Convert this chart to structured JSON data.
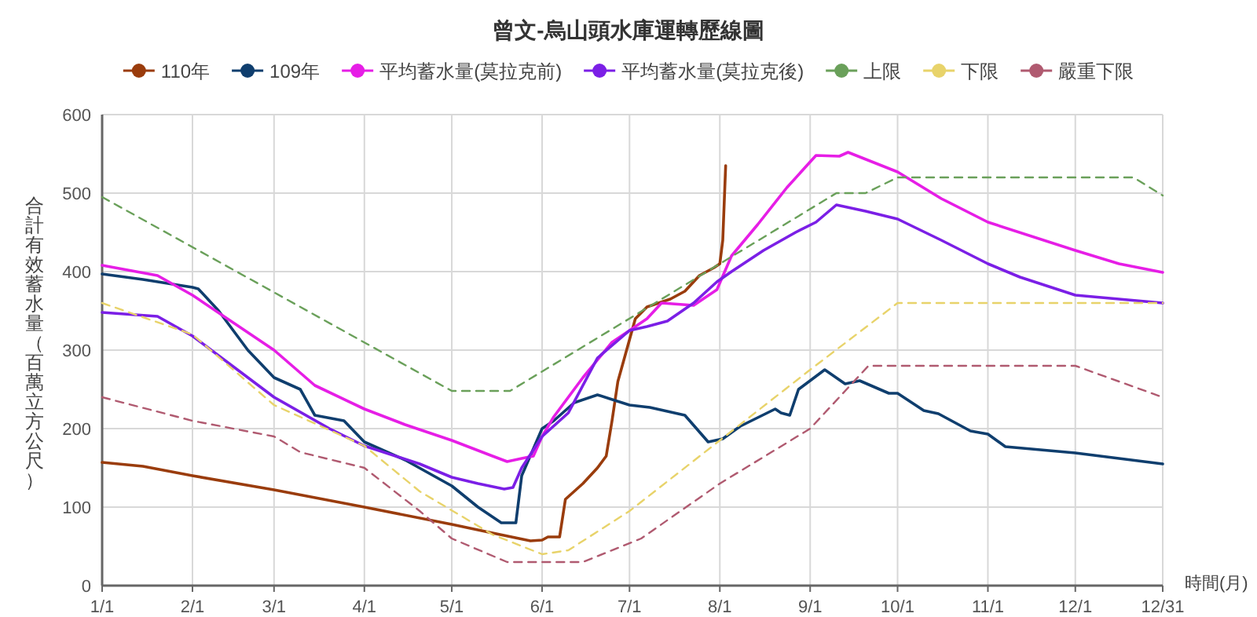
{
  "chart_data": {
    "type": "line",
    "title": "曾文-烏山頭水庫運轉歷線圖",
    "ylabel": "合計有效蓄水量（百萬立方公尺）",
    "xlabel": "時間(月)",
    "legend": "top",
    "grid": true,
    "xlim": [
      "--01-01",
      "--12-31"
    ],
    "xticks": [
      {
        "value": "--01-01",
        "label": "1/1"
      },
      {
        "value": "--02-01",
        "label": "2/1"
      },
      {
        "value": "--03-01",
        "label": "3/1"
      },
      {
        "value": "--04-01",
        "label": "4/1"
      },
      {
        "value": "--05-01",
        "label": "5/1"
      },
      {
        "value": "--06-01",
        "label": "6/1"
      },
      {
        "value": "--07-01",
        "label": "7/1"
      },
      {
        "value": "--08-01",
        "label": "8/1"
      },
      {
        "value": "--09-01",
        "label": "9/1"
      },
      {
        "value": "--10-01",
        "label": "10/1"
      },
      {
        "value": "--11-01",
        "label": "11/1"
      },
      {
        "value": "--12-01",
        "label": "12/1"
      },
      {
        "value": "--12-31",
        "label": "12/31"
      }
    ],
    "ylim": [
      0,
      600
    ],
    "yticks": [
      0,
      100,
      200,
      300,
      400,
      500,
      600
    ],
    "series": [
      {
        "name": "110年",
        "color": "#9a3c0c",
        "line_style": "solid",
        "x": [
          "--01-01",
          "--01-15",
          "--02-01",
          "--03-01",
          "--04-01",
          "--05-01",
          "--05-15",
          "--05-28",
          "--06-01",
          "--06-03",
          "--06-07",
          "--06-09",
          "--06-15",
          "--06-20",
          "--06-23",
          "--06-25",
          "--06-27",
          "--06-30",
          "--07-03",
          "--07-07",
          "--07-15",
          "--07-20",
          "--07-25",
          "--07-30",
          "--08-01",
          "--08-02",
          "--08-03"
        ],
        "values": [
          157,
          152,
          140,
          122,
          100,
          78,
          67,
          57,
          58,
          62,
          62,
          110,
          130,
          150,
          165,
          210,
          260,
          300,
          340,
          355,
          365,
          375,
          395,
          405,
          410,
          440,
          535
        ]
      },
      {
        "name": "109年",
        "color": "#0f3e6e",
        "line_style": "solid",
        "x": [
          "--01-01",
          "--01-15",
          "--02-01",
          "--02-03",
          "--02-10",
          "--02-20",
          "--03-01",
          "--03-10",
          "--03-15",
          "--03-25",
          "--04-01",
          "--04-15",
          "--05-01",
          "--05-10",
          "--05-18",
          "--05-23",
          "--05-25",
          "--06-01",
          "--06-05",
          "--06-12",
          "--06-20",
          "--07-01",
          "--07-08",
          "--07-20",
          "--07-28",
          "--08-02",
          "--08-08",
          "--08-20",
          "--08-22",
          "--08-25",
          "--08-28",
          "--09-06",
          "--09-13",
          "--09-18",
          "--09-28",
          "--10-01",
          "--10-10",
          "--10-15",
          "--10-26",
          "--11-01",
          "--11-07",
          "--12-01",
          "--12-31"
        ],
        "values": [
          397,
          390,
          380,
          378,
          350,
          300,
          265,
          250,
          217,
          210,
          183,
          160,
          127,
          100,
          80,
          80,
          140,
          200,
          210,
          233,
          243,
          230,
          227,
          217,
          183,
          187,
          203,
          225,
          220,
          217,
          250,
          275,
          257,
          261,
          245,
          245,
          223,
          219,
          197,
          193,
          177,
          169,
          155
        ]
      },
      {
        "name": "平均蓄水量(莫拉克前)",
        "color": "#e61ee6",
        "line_style": "solid",
        "x": [
          "--01-01",
          "--01-20",
          "--02-01",
          "--03-01",
          "--03-15",
          "--04-01",
          "--04-15",
          "--05-01",
          "--05-15",
          "--05-20",
          "--05-25",
          "--05-29",
          "--06-01",
          "--06-05",
          "--06-15",
          "--06-25",
          "--07-01",
          "--07-07",
          "--07-12",
          "--07-23",
          "--07-31",
          "--08-05",
          "--08-14",
          "--08-24",
          "--09-03",
          "--09-11",
          "--09-14",
          "--10-01",
          "--10-16",
          "--11-01",
          "--12-01",
          "--12-16",
          "--12-31"
        ],
        "values": [
          408,
          395,
          370,
          300,
          255,
          225,
          205,
          185,
          165,
          158,
          162,
          165,
          190,
          215,
          265,
          310,
          325,
          340,
          360,
          357,
          377,
          420,
          460,
          507,
          548,
          547,
          552,
          527,
          493,
          463,
          427,
          410,
          399
        ]
      },
      {
        "name": "平均蓄水量(莫拉克後)",
        "color": "#7b1fe6",
        "line_style": "solid",
        "x": [
          "--01-01",
          "--01-20",
          "--02-01",
          "--03-01",
          "--03-20",
          "--04-01",
          "--04-20",
          "--05-01",
          "--05-10",
          "--05-19",
          "--05-22",
          "--05-25",
          "--06-01",
          "--06-10",
          "--06-20",
          "--07-01",
          "--07-07",
          "--07-14",
          "--07-23",
          "--07-31",
          "--08-05",
          "--08-16",
          "--08-27",
          "--09-03",
          "--09-10",
          "--09-20",
          "--10-01",
          "--10-16",
          "--11-01",
          "--11-12",
          "--12-01",
          "--12-31"
        ],
        "values": [
          348,
          343,
          318,
          240,
          200,
          178,
          155,
          138,
          130,
          123,
          125,
          150,
          190,
          220,
          290,
          325,
          330,
          337,
          360,
          387,
          400,
          427,
          450,
          463,
          485,
          477,
          467,
          440,
          410,
          393,
          370,
          360
        ]
      },
      {
        "name": "上限",
        "color": "#6aa05a",
        "line_style": "dashed",
        "x": [
          "--01-01",
          "--05-01",
          "--05-21",
          "--09-10",
          "--09-20",
          "--10-01",
          "--12-21",
          "--12-31"
        ],
        "values": [
          495,
          248,
          248,
          500,
          500,
          520,
          520,
          497
        ]
      },
      {
        "name": "下限",
        "color": "#e8d36a",
        "line_style": "dashed",
        "x": [
          "--01-01",
          "--02-01",
          "--03-01",
          "--04-01",
          "--04-20",
          "--05-15",
          "--06-01",
          "--06-10",
          "--07-01",
          "--08-01",
          "--09-01",
          "--10-01",
          "--12-31"
        ],
        "values": [
          360,
          320,
          230,
          178,
          120,
          65,
          40,
          45,
          95,
          185,
          275,
          360,
          360
        ]
      },
      {
        "name": "嚴重下限",
        "color": "#b05a70",
        "line_style": "dashed",
        "x": [
          "--01-01",
          "--02-01",
          "--03-01",
          "--03-10",
          "--04-01",
          "--04-20",
          "--05-01",
          "--05-20",
          "--06-15",
          "--07-05",
          "--08-01",
          "--09-01",
          "--09-21",
          "--12-01",
          "--12-31"
        ],
        "values": [
          240,
          210,
          190,
          170,
          150,
          95,
          60,
          30,
          30,
          60,
          130,
          200,
          280,
          280,
          240
        ]
      }
    ]
  }
}
